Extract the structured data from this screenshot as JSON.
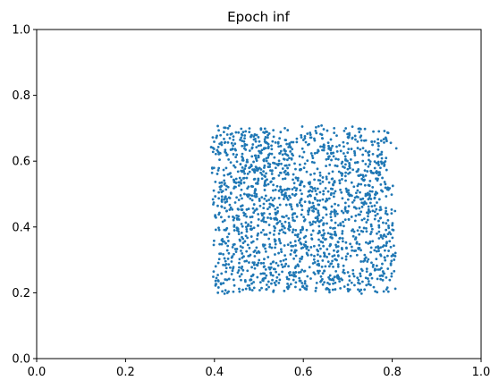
{
  "chart_data": {
    "type": "scatter",
    "title": "Epoch inf",
    "xlabel": "",
    "ylabel": "",
    "xlim": [
      0.0,
      1.0
    ],
    "ylim": [
      0.0,
      1.0
    ],
    "xticks": [
      0.0,
      0.2,
      0.4,
      0.6,
      0.8,
      1.0
    ],
    "yticks": [
      0.0,
      0.2,
      0.4,
      0.6,
      0.8,
      1.0
    ],
    "xtick_labels": [
      "0.0",
      "0.2",
      "0.4",
      "0.6",
      "0.8",
      "1.0"
    ],
    "ytick_labels": [
      "0.0",
      "0.2",
      "0.4",
      "0.6",
      "0.8",
      "1.0"
    ],
    "grid": false,
    "legend": "none",
    "series": [
      {
        "color": "#1f77b4",
        "point_count": 1800,
        "distribution": "uniform-jittered square",
        "x_range": [
          0.38,
          0.82
        ],
        "y_range": [
          0.18,
          0.71
        ]
      }
    ]
  }
}
